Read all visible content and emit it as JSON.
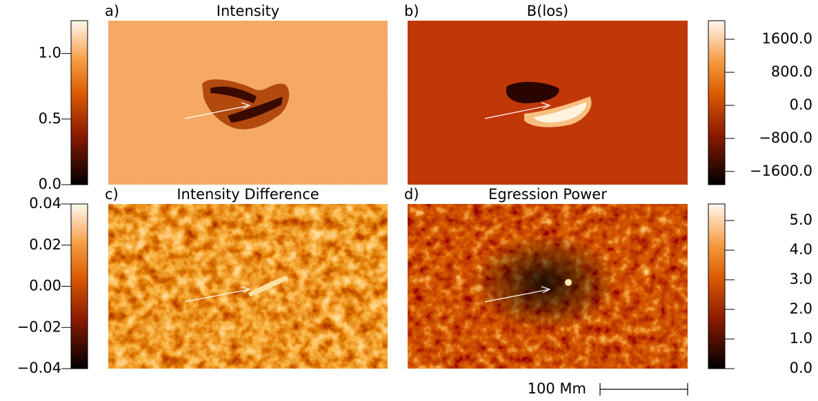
{
  "chart_data": [
    {
      "type": "image",
      "label": "a)",
      "title": "Intensity",
      "ylim": [
        0,
        1.25
      ],
      "yticks": [
        {
          "value": 0,
          "label": "0.0"
        },
        {
          "value": 0.5,
          "label": "0.5"
        },
        {
          "value": 1,
          "label": "1.0"
        }
      ]
    },
    {
      "type": "image",
      "label": "b)",
      "title": "B(los)",
      "ylim": [
        -1920,
        2050
      ],
      "yticks": [
        {
          "value": -1600,
          "label": "−1600.0"
        },
        {
          "value": -800,
          "label": "−800.0"
        },
        {
          "value": 0,
          "label": "0.0"
        },
        {
          "value": 800,
          "label": "800.0"
        },
        {
          "value": 1600,
          "label": "1600.0"
        }
      ]
    },
    {
      "type": "image",
      "label": "c)",
      "title": "Intensity Difference",
      "ylim": [
        -0.04,
        0.04
      ],
      "yticks": [
        {
          "value": -0.04,
          "label": "−0.04"
        },
        {
          "value": -0.02,
          "label": "−0.02"
        },
        {
          "value": 0,
          "label": "0.00"
        },
        0.02,
        0.04
      ]
    },
    {
      "type": "image",
      "label": "d)",
      "title": "Egression Power",
      "ylim": [
        0,
        5.56
      ],
      "yticks": [
        {
          "value": 0,
          "label": "0.0"
        },
        {
          "value": 1,
          "label": "1.0"
        },
        {
          "value": 2,
          "label": "2.0"
        },
        {
          "value": 3,
          "label": "3.0"
        },
        {
          "value": 4,
          "label": "4.0"
        },
        {
          "value": 5,
          "label": "5.0"
        }
      ]
    }
  ],
  "scale_bar": {
    "label": "100 Mm"
  }
}
